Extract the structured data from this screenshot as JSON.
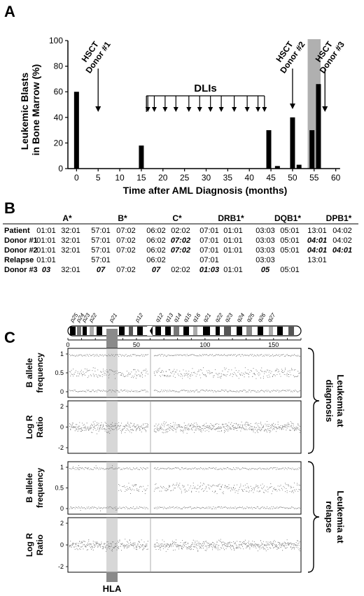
{
  "panels": {
    "a": "A",
    "b": "B",
    "c": "C"
  },
  "chart_data": {
    "type": "bar",
    "ylabel_lines": [
      "Leukemic Blasts",
      "in Bone Marrow (%)"
    ],
    "xlabel": "Time after AML Diagnosis (months)",
    "xlim": [
      -2,
      62
    ],
    "ylim": [
      0,
      100
    ],
    "x_ticks": [
      0,
      5,
      10,
      15,
      20,
      25,
      30,
      35,
      40,
      45,
      50,
      55,
      60
    ],
    "y_ticks": [
      0,
      20,
      40,
      60,
      80,
      100
    ],
    "bars": [
      {
        "x": 0,
        "value": 60
      },
      {
        "x": 15,
        "value": 18
      },
      {
        "x": 44.5,
        "value": 30
      },
      {
        "x": 46.5,
        "value": 2
      },
      {
        "x": 50,
        "value": 40
      },
      {
        "x": 51.5,
        "value": 3
      },
      {
        "x": 54.5,
        "value": 30
      },
      {
        "x": 56,
        "value": 66
      }
    ],
    "shaded_region": [
      53.5,
      56.5
    ],
    "annotations": [
      {
        "label_lines": [
          "HSCT",
          "Donor #1"
        ],
        "x": 5
      },
      {
        "label_lines": [
          "HSCT",
          "Donor #2"
        ],
        "x": 50
      },
      {
        "label_lines": [
          "HSCT",
          "Donor #3"
        ],
        "x": 57.5
      }
    ],
    "dli_label": "DLIs",
    "dli_times": [
      16.5,
      18,
      20.5,
      23,
      26,
      28.5,
      31,
      33.5,
      36.5,
      39.5,
      42,
      43.5
    ]
  },
  "hla_table": {
    "headers": [
      "A*",
      "B*",
      "C*",
      "DRB1*",
      "DQB1*",
      "DPB1*"
    ],
    "rows": [
      {
        "label": "Patient",
        "cells": [
          [
            "01:01",
            "32:01"
          ],
          [
            "57:01",
            "07:02"
          ],
          [
            "06:02",
            "02:02"
          ],
          [
            "07:01",
            "01:01"
          ],
          [
            "03:03",
            "05:01"
          ],
          [
            "13:01",
            "04:02"
          ]
        ],
        "bold": []
      },
      {
        "label": "Donor #1",
        "cells": [
          [
            "01:01",
            "32:01"
          ],
          [
            "57:01",
            "07:02"
          ],
          [
            "06:02",
            "07:02"
          ],
          [
            "07:01",
            "01:01"
          ],
          [
            "03:03",
            "05:01"
          ],
          [
            "04:01",
            "04:02"
          ]
        ],
        "bold": [
          "2.1",
          "5.0"
        ]
      },
      {
        "label": "Donor #2",
        "cells": [
          [
            "01:01",
            "32:01"
          ],
          [
            "57:01",
            "07:02"
          ],
          [
            "06:02",
            "07:02"
          ],
          [
            "07:01",
            "01:01"
          ],
          [
            "03:03",
            "05:01"
          ],
          [
            "04:01",
            "04:01"
          ]
        ],
        "bold": [
          "2.1",
          "5.0",
          "5.1"
        ]
      },
      {
        "label": "Relapse",
        "cells": [
          [
            "01:01",
            ""
          ],
          [
            "57:01",
            ""
          ],
          [
            "06:02",
            ""
          ],
          [
            "07:01",
            ""
          ],
          [
            "03:03",
            ""
          ],
          [
            "13:01",
            ""
          ]
        ],
        "bold": []
      },
      {
        "label": "Donor #3",
        "cells": [
          [
            "03",
            "32:01"
          ],
          [
            "07",
            "07:02"
          ],
          [
            "07",
            "02:02"
          ],
          [
            "01:03",
            "01:01"
          ],
          [
            "05",
            "05:01"
          ],
          [
            "",
            ""
          ]
        ],
        "bold": [
          "0.0",
          "1.0",
          "2.0",
          "3.0",
          "4.0"
        ]
      }
    ]
  },
  "chromosome": {
    "bands": [
      "p25",
      "p24",
      "p23",
      "p22",
      "p21",
      "p12",
      "q12",
      "q13",
      "q14",
      "q15",
      "q16",
      "q21",
      "q22",
      "q23",
      "q24",
      "q25",
      "q26",
      "q27"
    ],
    "scale_ticks": [
      0,
      50,
      100,
      150
    ],
    "hla_label": "HLA"
  },
  "tracks": [
    {
      "ylabel_lines": [
        "B allele",
        "frequency"
      ],
      "ticks": [
        "1",
        "0.5",
        "0"
      ]
    },
    {
      "ylabel_lines": [
        "Log R",
        "Ratio"
      ],
      "ticks": [
        "2",
        "0",
        "-2"
      ]
    },
    {
      "ylabel_lines": [
        "B allele",
        "frequency"
      ],
      "ticks": [
        "1",
        "0.5",
        "0"
      ]
    },
    {
      "ylabel_lines": [
        "Log R",
        "Ratio"
      ],
      "ticks": [
        "2",
        "0",
        "-2"
      ]
    }
  ],
  "groups": [
    {
      "label_lines": [
        "Leukemia at",
        "diagnosis"
      ]
    },
    {
      "label_lines": [
        "Leukemia at",
        "relapse"
      ]
    }
  ]
}
